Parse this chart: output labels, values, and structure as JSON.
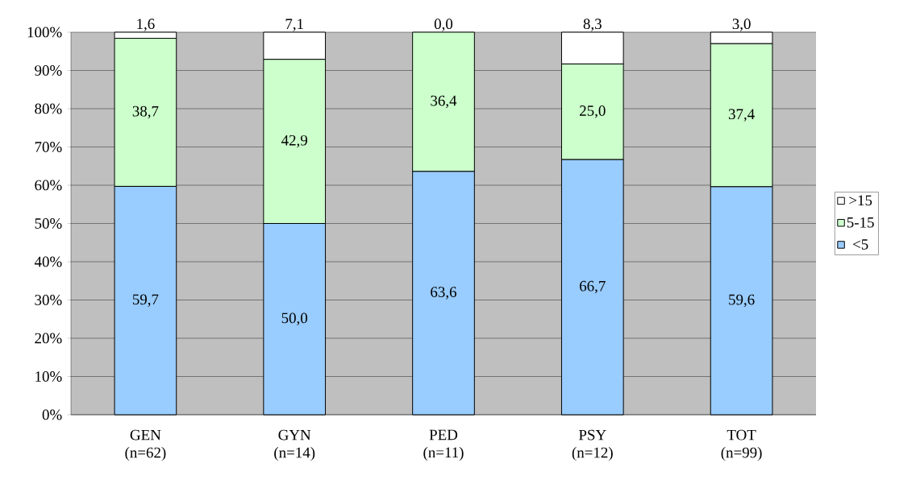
{
  "chart_data": {
    "type": "bar",
    "stacked": true,
    "categories": [
      "GEN (n=62)",
      "GYN (n=14)",
      "PED (n=11)",
      "PSY (n=12)",
      "TOT (n=99)"
    ],
    "series": [
      {
        "name": "<5",
        "color": "#99ccff",
        "values": [
          59.7,
          50.0,
          63.6,
          66.7,
          59.6
        ],
        "value_labels": [
          "59,7",
          "50,0",
          "63,6",
          "66,7",
          "59,6"
        ]
      },
      {
        "name": "5-15",
        "color": "#ccffcc",
        "values": [
          38.7,
          42.9,
          36.4,
          25.0,
          37.4
        ],
        "value_labels": [
          "38,7",
          "42,9",
          "36,4",
          "25,0",
          "37,4"
        ]
      },
      {
        "name": ">15",
        "color": "#ffffff",
        "values": [
          1.6,
          7.1,
          0.0,
          8.3,
          3.0
        ],
        "value_labels": [
          "1,6",
          "7,1",
          "0,0",
          "8,3",
          "3,0"
        ]
      }
    ],
    "ylim": [
      0,
      100
    ],
    "yticks": [
      {
        "value": 0,
        "label": "0%"
      },
      {
        "value": 10,
        "label": "10%"
      },
      {
        "value": 20,
        "label": "20%"
      },
      {
        "value": 30,
        "label": "30%"
      },
      {
        "value": 40,
        "label": "40%"
      },
      {
        "value": 50,
        "label": "50%"
      },
      {
        "value": 60,
        "label": "60%"
      },
      {
        "value": 70,
        "label": "70%"
      },
      {
        "value": 80,
        "label": "80%"
      },
      {
        "value": 90,
        "label": "90%"
      },
      {
        "value": 100,
        "label": "100%"
      }
    ],
    "grid": "y",
    "legend": "right"
  }
}
